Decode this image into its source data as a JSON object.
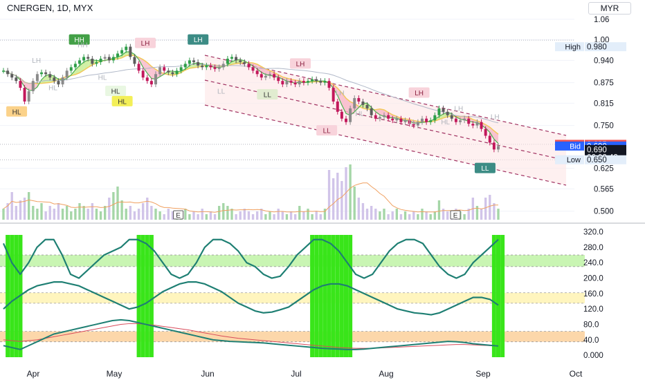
{
  "header": {
    "symbol": "CNERGEN, 1D, MYX",
    "currency": "MYR"
  },
  "chart_data": {
    "type": "candlestick",
    "x_ticks": [
      "Apr",
      "May",
      "Jun",
      "Jul",
      "Aug",
      "Sep",
      "Oct"
    ],
    "price_axis": {
      "ticks": [
        1.06,
        1.0,
        0.94,
        0.875,
        0.815,
        0.75,
        0.625,
        0.565,
        0.5
      ],
      "tick_labels": [
        "1.06",
        "1.00",
        "0.940",
        "0.875",
        "0.815",
        "0.750",
        "0.625",
        "0.565",
        "0.500"
      ],
      "ylim": [
        0.475,
        1.08
      ]
    },
    "price_markers": [
      {
        "label": "High",
        "value": "0.980",
        "price": 0.98
      },
      {
        "label": "Ask",
        "value": "0.695",
        "price": 0.695
      },
      {
        "label": "Bid",
        "value": "0.690",
        "price": 0.69
      },
      {
        "label": "",
        "value": "0.690",
        "price": 0.68
      },
      {
        "label": "Low",
        "value": "0.650",
        "price": 0.65
      }
    ],
    "countdown": "06:02:42",
    "closes": [
      0.91,
      0.9,
      0.89,
      0.88,
      0.86,
      0.82,
      0.85,
      0.88,
      0.9,
      0.905,
      0.9,
      0.89,
      0.88,
      0.87,
      0.89,
      0.91,
      0.92,
      0.93,
      0.94,
      0.95,
      0.945,
      0.93,
      0.935,
      0.945,
      0.95,
      0.94,
      0.95,
      0.96,
      0.97,
      0.98,
      0.95,
      0.93,
      0.91,
      0.89,
      0.88,
      0.87,
      0.9,
      0.92,
      0.91,
      0.905,
      0.9,
      0.91,
      0.92,
      0.93,
      0.94,
      0.935,
      0.925,
      0.92,
      0.925,
      0.92,
      0.915,
      0.92,
      0.93,
      0.945,
      0.95,
      0.94,
      0.935,
      0.93,
      0.92,
      0.91,
      0.9,
      0.89,
      0.895,
      0.9,
      0.89,
      0.88,
      0.87,
      0.88,
      0.875,
      0.87,
      0.88,
      0.875,
      0.88,
      0.885,
      0.88,
      0.875,
      0.88,
      0.86,
      0.82,
      0.79,
      0.77,
      0.76,
      0.8,
      0.83,
      0.82,
      0.81,
      0.8,
      0.78,
      0.77,
      0.775,
      0.78,
      0.77,
      0.765,
      0.77,
      0.76,
      0.765,
      0.755,
      0.75,
      0.76,
      0.77,
      0.76,
      0.765,
      0.78,
      0.8,
      0.79,
      0.78,
      0.77,
      0.76,
      0.765,
      0.77,
      0.755,
      0.75,
      0.76,
      0.74,
      0.72,
      0.7,
      0.68,
      0.69
    ],
    "volumes": [
      0.2,
      0.3,
      0.5,
      0.25,
      0.35,
      0.4,
      0.5,
      0.25,
      0.2,
      0.3,
      0.15,
      0.25,
      0.2,
      0.3,
      0.2,
      0.25,
      0.15,
      0.2,
      0.3,
      0.25,
      0.2,
      0.3,
      0.2,
      0.15,
      0.25,
      0.4,
      0.5,
      0.6,
      0.35,
      0.2,
      0.25,
      0.15,
      0.2,
      0.3,
      0.4,
      0.25,
      0.2,
      0.15,
      0.1,
      0.2,
      0.15,
      0.1,
      0.15,
      0.2,
      0.1,
      0.15,
      0.1,
      0.2,
      0.1,
      0.15,
      0.1,
      0.25,
      0.3,
      0.25,
      0.2,
      0.1,
      0.15,
      0.2,
      0.15,
      0.1,
      0.15,
      0.2,
      0.1,
      0.15,
      0.1,
      0.2,
      0.15,
      0.1,
      0.15,
      0.1,
      0.25,
      0.15,
      0.2,
      0.1,
      0.15,
      0.1,
      0.2,
      0.9,
      0.75,
      0.85,
      0.7,
      0.95,
      1.0,
      0.6,
      0.4,
      0.3,
      0.2,
      0.25,
      0.2,
      0.15,
      0.2,
      0.1,
      0.15,
      0.2,
      0.1,
      0.15,
      0.1,
      0.15,
      0.1,
      0.2,
      0.15,
      0.1,
      0.15,
      0.35,
      0.2,
      0.15,
      0.1,
      0.2,
      0.15,
      0.1,
      0.2,
      0.4,
      0.25,
      0.2,
      0.4,
      0.45,
      0.3,
      0.2
    ],
    "channels": [
      {
        "upper": [
          [
            296,
            80
          ],
          [
            818,
            196
          ]
        ],
        "lower": [
          [
            296,
            152
          ],
          [
            818,
            268
          ]
        ],
        "mid": [
          [
            296,
            116
          ],
          [
            818,
            232
          ]
        ]
      }
    ],
    "swing_labels": [
      {
        "text": "HH",
        "i": 23,
        "price": 1.0,
        "style": "green"
      },
      {
        "text": "LH",
        "i": 59,
        "price": 1.0,
        "style": "teal"
      },
      {
        "text": "LH",
        "i": 43,
        "price": 0.99,
        "style": "pink"
      },
      {
        "text": "HL",
        "i": 34,
        "price": 0.85,
        "style": "lightgreen"
      },
      {
        "text": "HL",
        "i": 36,
        "price": 0.82,
        "style": "yellow"
      },
      {
        "text": "HL",
        "i": 4,
        "price": 0.79,
        "style": "orange"
      },
      {
        "text": "LL",
        "i": 80,
        "price": 0.84,
        "style": "lightgreen2"
      },
      {
        "text": "LH",
        "i": 90,
        "price": 0.93,
        "style": "pink"
      },
      {
        "text": "LL",
        "i": 98,
        "price": 0.735,
        "style": "pink"
      },
      {
        "text": "LH",
        "i": 126,
        "price": 0.845,
        "style": "pink"
      },
      {
        "text": "LL",
        "i": 146,
        "price": 0.625,
        "style": "teal"
      },
      {
        "text": "HH",
        "i": 24,
        "price": 0.985,
        "style": "faint"
      },
      {
        "text": "LH",
        "i": 10,
        "price": 0.94,
        "style": "faint"
      },
      {
        "text": "HL",
        "i": 15,
        "price": 0.86,
        "style": "faint"
      },
      {
        "text": "HL",
        "i": 30,
        "price": 0.89,
        "style": "faint"
      },
      {
        "text": "LL",
        "i": 66,
        "price": 0.85,
        "style": "faint"
      },
      {
        "text": "LH",
        "i": 102,
        "price": 0.845,
        "style": "faint"
      },
      {
        "text": "HL",
        "i": 108,
        "price": 0.785,
        "style": "faint"
      },
      {
        "text": "LL",
        "i": 124,
        "price": 0.76,
        "style": "faint"
      },
      {
        "text": "HL",
        "i": 134,
        "price": 0.76,
        "style": "faint"
      },
      {
        "text": "LH",
        "i": 138,
        "price": 0.8,
        "style": "faint"
      },
      {
        "text": "LH",
        "i": 149,
        "price": 0.775,
        "style": "faint"
      }
    ],
    "earnings_markers": [
      {
        "text": "E",
        "i": 53
      },
      {
        "text": "E",
        "i": 137
      }
    ],
    "oscillator": {
      "ticks": [
        320.0,
        280.0,
        240.0,
        200.0,
        160.0,
        120.0,
        80.0,
        40.0,
        0.0
      ],
      "tick_labels": [
        "320.0",
        "280.0",
        "240.0",
        "200.0",
        "160.0",
        "120.0",
        "80.0",
        "40.0",
        "0.000"
      ],
      "ylim": [
        -5,
        330
      ],
      "bands": [
        {
          "from": 230,
          "to": 260,
          "color": "#b7f29a"
        },
        {
          "from": 135,
          "to": 162,
          "color": "#fff2a8"
        },
        {
          "from": 35,
          "to": 62,
          "color": "#fbc98e"
        }
      ],
      "line1": [
        290,
        240,
        210,
        240,
        280,
        300,
        300,
        260,
        210,
        200,
        220,
        240,
        260,
        270,
        280,
        300,
        300,
        290,
        270,
        240,
        210,
        200,
        210,
        240,
        280,
        300,
        300,
        290,
        270,
        240,
        230,
        210,
        200,
        205,
        230,
        260,
        280,
        300,
        300,
        290,
        270,
        240,
        210,
        200,
        210,
        240,
        270,
        290,
        300,
        300,
        290,
        260,
        230,
        210,
        200,
        210,
        240,
        260,
        280,
        300
      ],
      "line2": [
        120,
        140,
        155,
        170,
        180,
        185,
        190,
        190,
        185,
        180,
        170,
        160,
        150,
        140,
        130,
        120,
        125,
        135,
        150,
        165,
        175,
        185,
        190,
        190,
        185,
        175,
        165,
        150,
        135,
        125,
        115,
        110,
        112,
        118,
        125,
        140,
        155,
        170,
        180,
        185,
        185,
        180,
        170,
        160,
        150,
        140,
        130,
        120,
        115,
        110,
        108,
        105,
        110,
        120,
        130,
        140,
        150,
        150,
        145,
        130
      ],
      "line3": [
        25,
        20,
        15,
        25,
        35,
        45,
        55,
        60,
        65,
        70,
        75,
        80,
        85,
        90,
        92,
        90,
        85,
        80,
        75,
        70,
        65,
        60,
        55,
        50,
        45,
        40,
        38,
        36,
        35,
        34,
        33,
        32,
        30,
        28,
        26,
        24,
        22,
        20,
        18,
        17,
        16,
        15,
        15,
        16,
        18,
        20,
        22,
        24,
        26,
        28,
        30,
        32,
        34,
        36,
        35,
        33,
        30,
        28,
        26,
        24
      ],
      "line3_ma": [
        40,
        38,
        36,
        38,
        40,
        44,
        48,
        52,
        56,
        60,
        64,
        68,
        72,
        76,
        80,
        82,
        82,
        80,
        78,
        75,
        72,
        69,
        66,
        62,
        58,
        54,
        50,
        47,
        44,
        42,
        40,
        38,
        36,
        34,
        32,
        30,
        28,
        26,
        24,
        22,
        20,
        19,
        18,
        18,
        18,
        19,
        20,
        21,
        22,
        23,
        24,
        25,
        26,
        27,
        28,
        28,
        27,
        26,
        25,
        24
      ],
      "bar_positions": [
        1,
        2,
        3,
        4,
        32,
        33,
        34,
        35,
        73,
        74,
        75,
        76,
        77,
        78,
        79,
        80,
        81,
        82,
        116,
        117,
        118
      ]
    }
  }
}
